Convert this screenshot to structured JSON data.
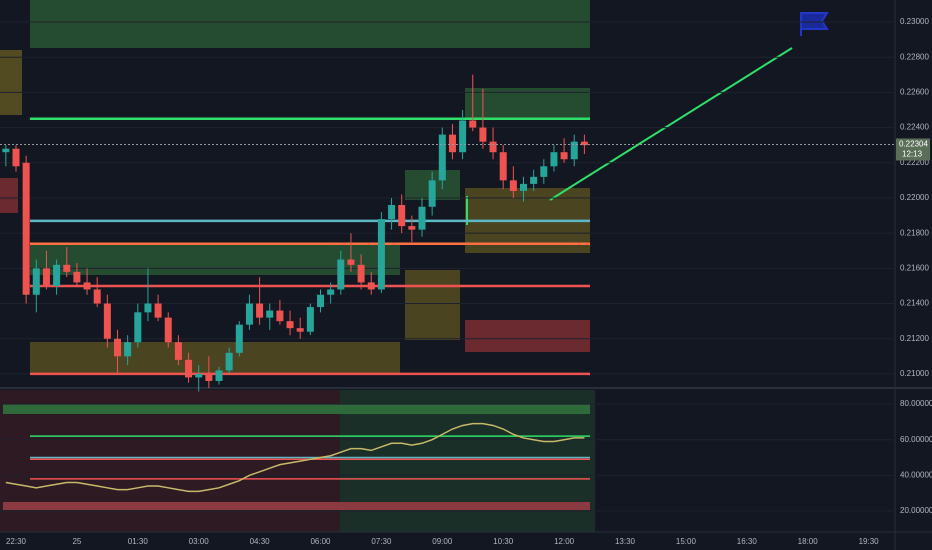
{
  "chart_data": [
    {
      "type": "candlestick",
      "open": [
        0.2226,
        0.2228,
        0.222,
        0.2145,
        0.216,
        0.215,
        0.2162,
        0.2158,
        0.2152,
        0.2148,
        0.214,
        0.212,
        0.211,
        0.2118,
        0.2135,
        0.214,
        0.2132,
        0.2118,
        0.2108,
        0.2098,
        0.21,
        0.2096,
        0.2102,
        0.2112,
        0.2128,
        0.214,
        0.2132,
        0.2136,
        0.213,
        0.2126,
        0.2124,
        0.2138,
        0.2145,
        0.2148,
        0.2165,
        0.2162,
        0.2152,
        0.2148,
        0.2188,
        0.2196,
        0.2184,
        0.2182,
        0.2195,
        0.221,
        0.2236,
        0.2226,
        0.2244,
        0.224,
        0.2232,
        0.2226,
        0.221,
        0.2204,
        0.2208,
        0.2212,
        0.2218,
        0.2226,
        0.2222,
        0.2232
      ],
      "high": [
        0.223,
        0.223,
        0.2224,
        0.2165,
        0.217,
        0.2165,
        0.2172,
        0.2163,
        0.216,
        0.2155,
        0.2145,
        0.2125,
        0.2122,
        0.214,
        0.216,
        0.2145,
        0.2135,
        0.2122,
        0.2112,
        0.2105,
        0.211,
        0.2104,
        0.2115,
        0.213,
        0.2145,
        0.2155,
        0.214,
        0.2142,
        0.2136,
        0.2132,
        0.214,
        0.2148,
        0.2152,
        0.217,
        0.218,
        0.2168,
        0.2158,
        0.2192,
        0.22,
        0.2202,
        0.219,
        0.22,
        0.2215,
        0.224,
        0.2242,
        0.225,
        0.227,
        0.2262,
        0.224,
        0.223,
        0.2218,
        0.2212,
        0.2216,
        0.2222,
        0.223,
        0.2234,
        0.2236,
        0.2236
      ],
      "low": [
        0.2218,
        0.2215,
        0.214,
        0.2135,
        0.2148,
        0.2145,
        0.2155,
        0.215,
        0.2145,
        0.2138,
        0.2115,
        0.21,
        0.2105,
        0.2115,
        0.213,
        0.213,
        0.2115,
        0.2105,
        0.2095,
        0.209,
        0.2092,
        0.2094,
        0.21,
        0.211,
        0.2125,
        0.2128,
        0.2125,
        0.2128,
        0.2122,
        0.212,
        0.2122,
        0.2135,
        0.214,
        0.2145,
        0.2158,
        0.2148,
        0.2145,
        0.2146,
        0.2182,
        0.218,
        0.2175,
        0.2178,
        0.219,
        0.2205,
        0.2222,
        0.2222,
        0.2238,
        0.2228,
        0.2222,
        0.2205,
        0.22,
        0.2198,
        0.2204,
        0.2208,
        0.2215,
        0.222,
        0.2218,
        0.2225
      ],
      "close": [
        0.2228,
        0.2218,
        0.2145,
        0.216,
        0.215,
        0.2162,
        0.2158,
        0.2152,
        0.2148,
        0.214,
        0.212,
        0.211,
        0.2118,
        0.2135,
        0.214,
        0.2132,
        0.2118,
        0.2108,
        0.2098,
        0.21,
        0.2096,
        0.2102,
        0.2112,
        0.2128,
        0.214,
        0.2132,
        0.2136,
        0.213,
        0.2126,
        0.2124,
        0.2138,
        0.2145,
        0.2148,
        0.2165,
        0.2162,
        0.2152,
        0.2148,
        0.2188,
        0.2196,
        0.2184,
        0.2182,
        0.2195,
        0.221,
        0.2236,
        0.2226,
        0.2244,
        0.224,
        0.2232,
        0.2226,
        0.221,
        0.2204,
        0.2208,
        0.2212,
        0.2218,
        0.2226,
        0.2222,
        0.2232,
        0.223
      ],
      "up_color": "#26a69a",
      "down_color": "#ef5350",
      "ylim": [
        0.2092,
        0.23125
      ],
      "yticks": [
        {
          "value": 0.23,
          "label": "0.23000"
        },
        {
          "value": 0.228,
          "label": "0.22800"
        },
        {
          "value": 0.226,
          "label": "0.22600"
        },
        {
          "value": 0.224,
          "label": "0.22400"
        },
        {
          "value": 0.222,
          "label": "0.22200"
        },
        {
          "value": 0.22,
          "label": "0.22000"
        },
        {
          "value": 0.218,
          "label": "0.21800"
        },
        {
          "value": 0.216,
          "label": "0.21600"
        },
        {
          "value": 0.214,
          "label": "0.21400"
        },
        {
          "value": 0.212,
          "label": "0.21200"
        },
        {
          "value": 0.21,
          "label": "0.21000"
        }
      ],
      "levels": [
        {
          "value": 0.2245,
          "color": "#2ee06a"
        },
        {
          "value": 0.2174,
          "color": "#ff7043"
        },
        {
          "value": 0.2187,
          "color": "#5fb8c8"
        },
        {
          "value": 0.215,
          "color": "#ef5350"
        },
        {
          "value": 0.21,
          "color": "#ef5350"
        }
      ],
      "last_price": {
        "value": 0.22304,
        "label": "0.22304"
      },
      "countdown": "12:13"
    },
    {
      "type": "line",
      "values": [
        36,
        35,
        34,
        33,
        34,
        35,
        36,
        36,
        35,
        34,
        33,
        32,
        32,
        33,
        34,
        34,
        33,
        32,
        31,
        31,
        32,
        33,
        35,
        37,
        40,
        42,
        44,
        46,
        47,
        48,
        49,
        50,
        51,
        53,
        55,
        55,
        54,
        56,
        58,
        58,
        57,
        58,
        60,
        63,
        66,
        68,
        69,
        69,
        68,
        66,
        63,
        61,
        60,
        59,
        59,
        60,
        61,
        61
      ],
      "color": "#c8b96a",
      "ylim": [
        8.2,
        87.9
      ],
      "yticks": [
        {
          "value": 80,
          "label": "80.00000"
        },
        {
          "value": 60,
          "label": "60.00000"
        },
        {
          "value": 40,
          "label": "40.00000"
        },
        {
          "value": 20,
          "label": "20.00000"
        }
      ],
      "levels": [
        {
          "value": 62,
          "color": "#2ee06a"
        },
        {
          "value": 50,
          "color": "#5fb8c8"
        },
        {
          "value": 49,
          "color": "#ef5350"
        },
        {
          "value": 38,
          "color": "#ef5350"
        }
      ]
    }
  ],
  "time_axis": [
    "22:30",
    "25",
    "01:30",
    "03:00",
    "04:30",
    "06:00",
    "07:30",
    "09:00",
    "10:30",
    "12:00",
    "13:30",
    "15:00",
    "16:30",
    "18:00",
    "19:30"
  ]
}
